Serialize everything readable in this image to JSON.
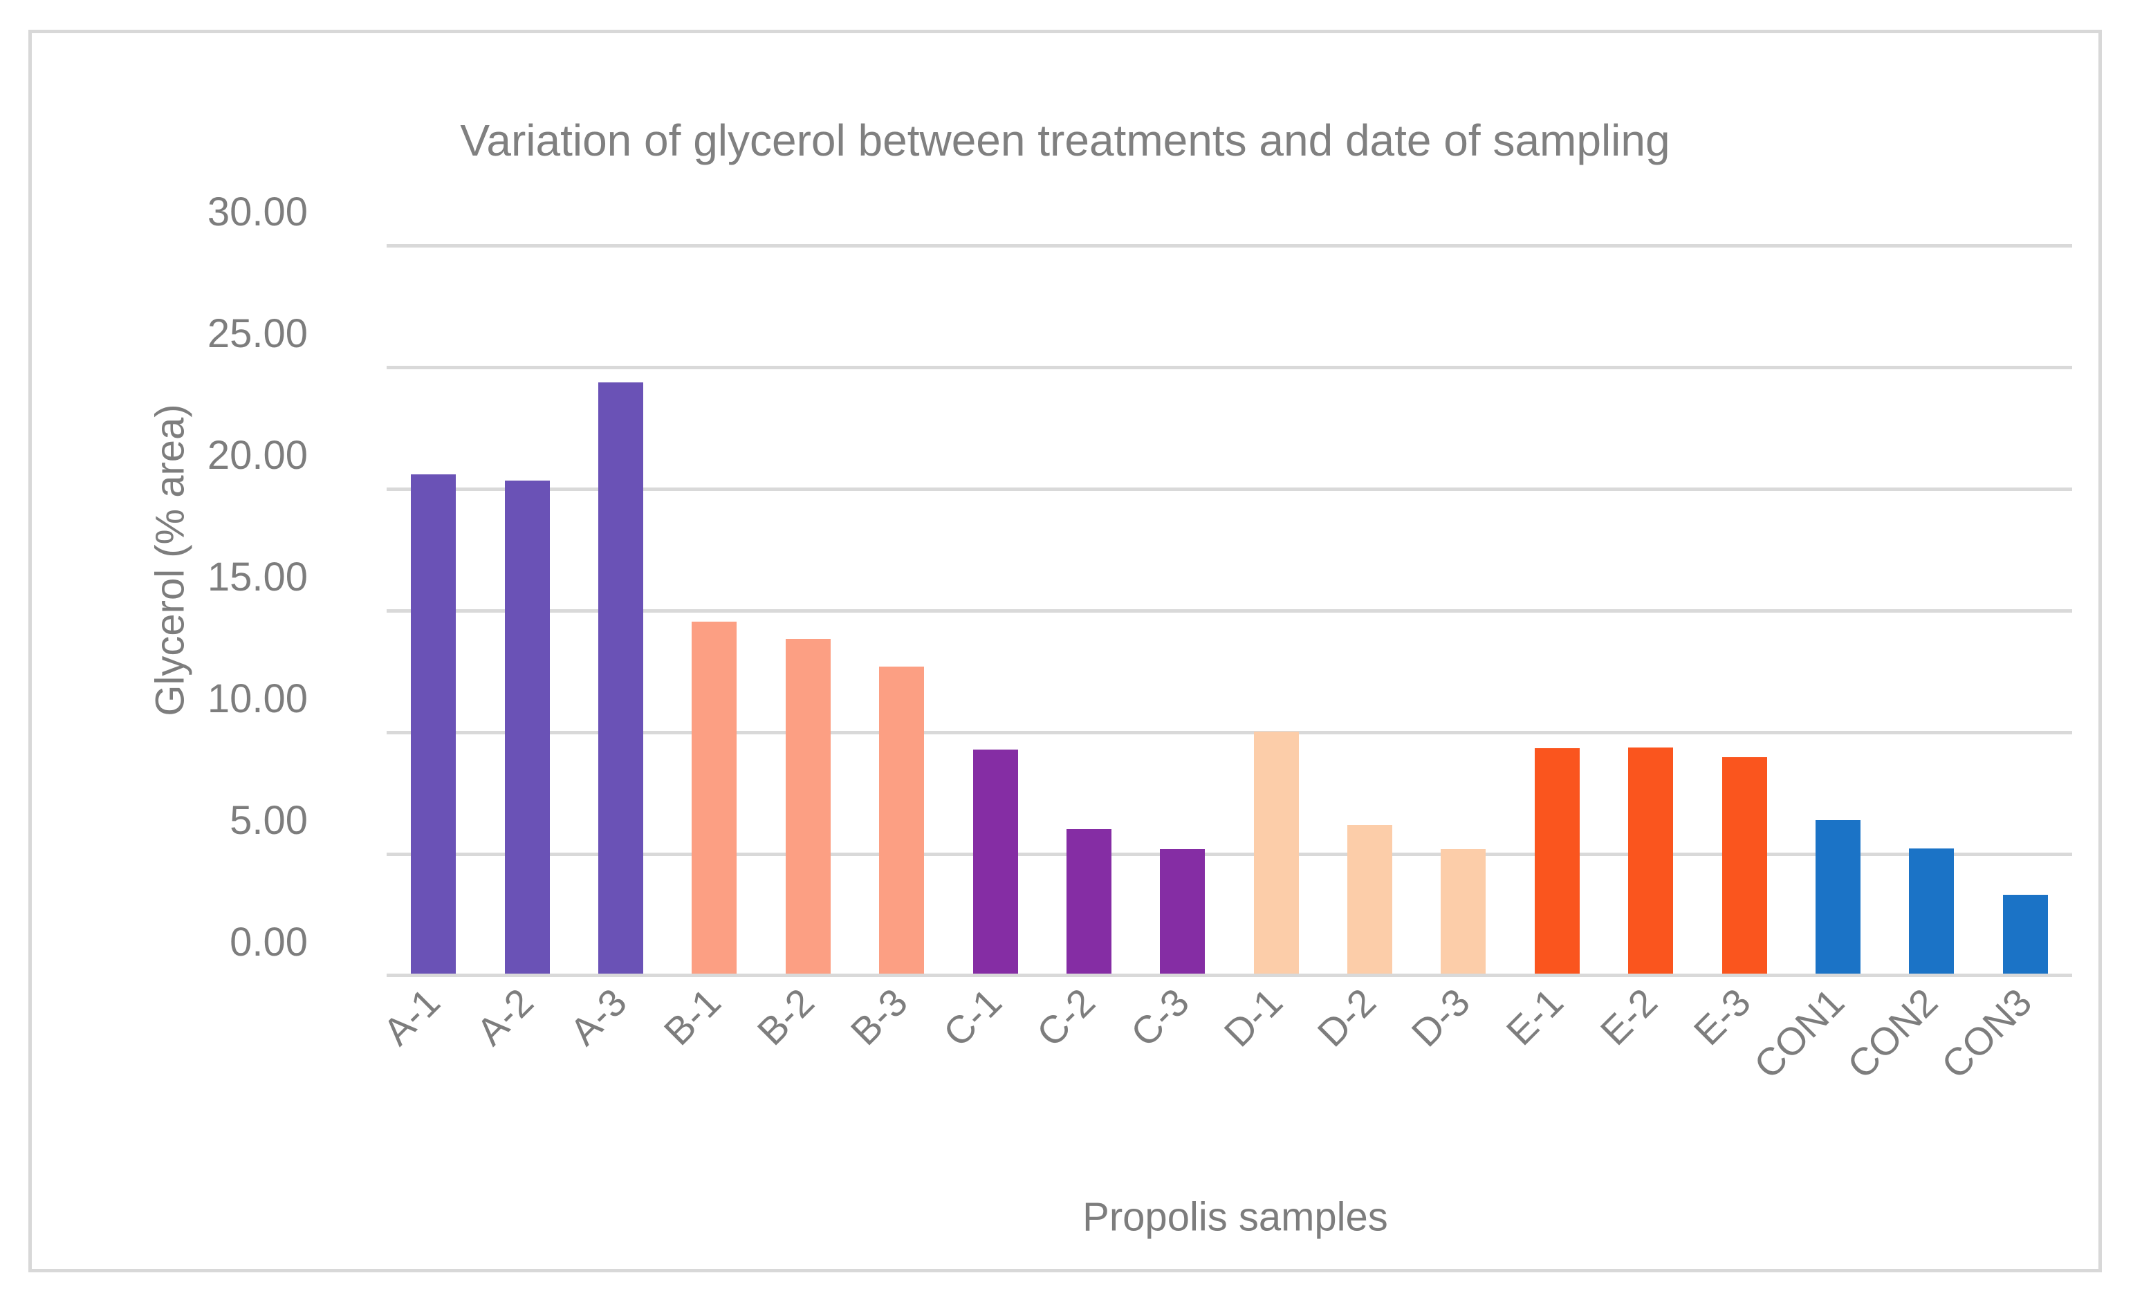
{
  "chart_data": {
    "type": "bar",
    "title": "Variation of glycerol between treatments and date of sampling",
    "xlabel": "Propolis samples",
    "ylabel": "Glycerol (% area)",
    "categories": [
      "A-1",
      "A-2",
      "A-3",
      "B-1",
      "B-2",
      "B-3",
      "C-1",
      "C-2",
      "C-3",
      "D-1",
      "D-2",
      "D-3",
      "E-1",
      "E-2",
      "E-3",
      "CON1",
      "CON2",
      "CON3"
    ],
    "values": [
      20.5,
      20.25,
      24.3,
      14.45,
      13.75,
      12.6,
      9.2,
      5.95,
      5.1,
      9.95,
      6.1,
      5.1,
      9.25,
      9.3,
      8.9,
      6.3,
      5.15,
      3.25
    ],
    "bar_colors": [
      "#6a52b6",
      "#6a52b6",
      "#6a52b6",
      "#fc9f83",
      "#fc9f83",
      "#fc9f83",
      "#852da4",
      "#852da4",
      "#852da4",
      "#fccda9",
      "#fccda9",
      "#fccda9",
      "#fa551e",
      "#fa551e",
      "#fa551e",
      "#1b73c6",
      "#1b73c6",
      "#1b73c6"
    ],
    "groups": [
      {
        "name": "A",
        "color": "#6a52b6"
      },
      {
        "name": "B",
        "color": "#fc9f83"
      },
      {
        "name": "C",
        "color": "#852da4"
      },
      {
        "name": "D",
        "color": "#fccda9"
      },
      {
        "name": "E",
        "color": "#fa551e"
      },
      {
        "name": "CON",
        "color": "#1b73c6"
      }
    ],
    "ytick_labels": [
      "0.00",
      "5.00",
      "10.00",
      "15.00",
      "20.00",
      "25.00",
      "30.00"
    ],
    "ylim": [
      0,
      30
    ],
    "ytick_step": 5,
    "grid": true,
    "legend": "none",
    "gridline_color": "#d9d9d9",
    "frame_border_color": "#d8d8d8",
    "text_color": "#7d7d7d",
    "title_color": "#808080"
  }
}
